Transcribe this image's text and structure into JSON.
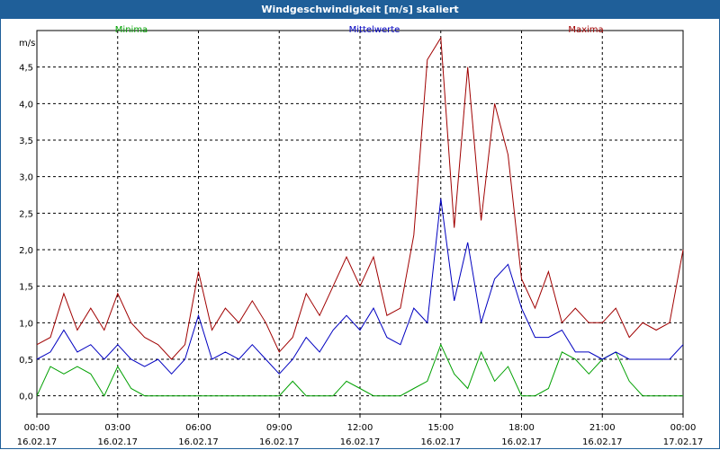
{
  "chart_data": {
    "type": "line",
    "title": "Windgeschwindigkeit [m/s] skaliert",
    "ylabel": "m/s",
    "xlabel": "",
    "ylim": [
      -0.25,
      5.0
    ],
    "y_ticks": [
      "0,0",
      "0,5",
      "1,0",
      "1,5",
      "2,0",
      "2,5",
      "3,0",
      "3,5",
      "4,0",
      "4,5"
    ],
    "y_tick_values": [
      0,
      0.5,
      1.0,
      1.5,
      2.0,
      2.5,
      3.0,
      3.5,
      4.0,
      4.5
    ],
    "x_tick_hours": [
      0,
      3,
      6,
      9,
      12,
      15,
      18,
      21,
      24
    ],
    "x_tick_labels": [
      {
        "time": "00:00",
        "date": "16.02.17"
      },
      {
        "time": "03:00",
        "date": "16.02.17"
      },
      {
        "time": "06:00",
        "date": "16.02.17"
      },
      {
        "time": "09:00",
        "date": "16.02.17"
      },
      {
        "time": "12:00",
        "date": "16.02.17"
      },
      {
        "time": "15:00",
        "date": "16.02.17"
      },
      {
        "time": "18:00",
        "date": "16.02.17"
      },
      {
        "time": "21:00",
        "date": "16.02.17"
      },
      {
        "time": "00:00",
        "date": "17.02.17"
      }
    ],
    "grid": true,
    "legend": "top",
    "series": [
      {
        "name": "Minima",
        "color": "#00a000",
        "x": [
          0,
          0.5,
          1,
          1.5,
          2,
          2.5,
          3,
          3.5,
          4,
          4.5,
          5,
          5.5,
          6,
          6.5,
          7,
          7.5,
          8,
          8.5,
          9,
          9.5,
          10,
          10.5,
          11,
          11.5,
          12,
          12.5,
          13,
          13.5,
          14,
          14.5,
          15,
          15.5,
          16,
          16.5,
          17,
          17.5,
          18,
          18.5,
          19,
          19.5,
          20,
          20.5,
          21,
          21.5,
          22,
          22.5,
          23,
          23.5,
          24
        ],
        "values": [
          0.0,
          0.4,
          0.3,
          0.4,
          0.3,
          0.0,
          0.4,
          0.1,
          0.0,
          0.0,
          0.0,
          0.0,
          0.0,
          0.0,
          0.0,
          0.0,
          0.0,
          0.0,
          0.0,
          0.2,
          0.0,
          0.0,
          0.0,
          0.2,
          0.1,
          0.0,
          0.0,
          0.0,
          0.1,
          0.2,
          0.7,
          0.3,
          0.1,
          0.6,
          0.2,
          0.4,
          0.0,
          0.0,
          0.1,
          0.6,
          0.5,
          0.3,
          0.5,
          0.6,
          0.2,
          0.0,
          0.0,
          0.0,
          0.0
        ]
      },
      {
        "name": "Mittelwerte",
        "color": "#0000c0",
        "x": [
          0,
          0.5,
          1,
          1.5,
          2,
          2.5,
          3,
          3.5,
          4,
          4.5,
          5,
          5.5,
          6,
          6.5,
          7,
          7.5,
          8,
          8.5,
          9,
          9.5,
          10,
          10.5,
          11,
          11.5,
          12,
          12.5,
          13,
          13.5,
          14,
          14.5,
          15,
          15.5,
          16,
          16.5,
          17,
          17.5,
          18,
          18.5,
          19,
          19.5,
          20,
          20.5,
          21,
          21.5,
          22,
          22.5,
          23,
          23.5,
          24
        ],
        "values": [
          0.5,
          0.6,
          0.9,
          0.6,
          0.7,
          0.5,
          0.7,
          0.5,
          0.4,
          0.5,
          0.3,
          0.5,
          1.1,
          0.5,
          0.6,
          0.5,
          0.7,
          0.5,
          0.3,
          0.5,
          0.8,
          0.6,
          0.9,
          1.1,
          0.9,
          1.2,
          0.8,
          0.7,
          1.2,
          1.0,
          2.7,
          1.3,
          2.1,
          1.0,
          1.6,
          1.8,
          1.2,
          0.8,
          0.8,
          0.9,
          0.6,
          0.6,
          0.5,
          0.6,
          0.5,
          0.5,
          0.5,
          0.5,
          0.7
        ]
      },
      {
        "name": "Maxima",
        "color": "#a00000",
        "x": [
          0,
          0.5,
          1,
          1.5,
          2,
          2.5,
          3,
          3.5,
          4,
          4.5,
          5,
          5.5,
          6,
          6.5,
          7,
          7.5,
          8,
          8.5,
          9,
          9.5,
          10,
          10.5,
          11,
          11.5,
          12,
          12.5,
          13,
          13.5,
          14,
          14.5,
          15,
          15.5,
          16,
          16.5,
          17,
          17.5,
          18,
          18.5,
          19,
          19.5,
          20,
          20.5,
          21,
          21.5,
          22,
          22.5,
          23,
          23.5,
          24
        ],
        "values": [
          0.7,
          0.8,
          1.4,
          0.9,
          1.2,
          0.9,
          1.4,
          1.0,
          0.8,
          0.7,
          0.5,
          0.7,
          1.7,
          0.9,
          1.2,
          1.0,
          1.3,
          1.0,
          0.6,
          0.8,
          1.4,
          1.1,
          1.5,
          1.9,
          1.5,
          1.9,
          1.1,
          1.2,
          2.2,
          4.6,
          4.9,
          2.3,
          4.5,
          2.4,
          4.0,
          3.3,
          1.6,
          1.2,
          1.7,
          1.0,
          1.2,
          1.0,
          1.0,
          1.2,
          0.8,
          1.0,
          0.9,
          1.0,
          2.0
        ]
      }
    ]
  }
}
